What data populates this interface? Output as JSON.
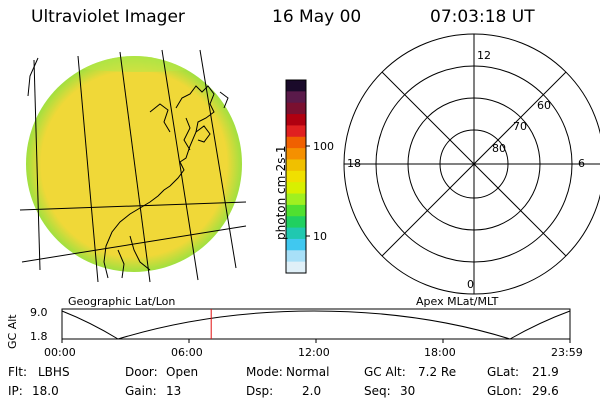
{
  "header": {
    "instrument": "Ultraviolet Imager",
    "date": "16 May 00",
    "time": "07:03:18 UT"
  },
  "colorbar": {
    "unit_label": "photon cm-2s-1",
    "ticks": [
      "100",
      "10"
    ],
    "colors": [
      "#1a0a2a",
      "#5a1a4a",
      "#7a1030",
      "#b00010",
      "#e02020",
      "#f06000",
      "#f59000",
      "#f0c000",
      "#f0e000",
      "#d8f000",
      "#a0f020",
      "#50e030",
      "#20d060",
      "#20c8b0",
      "#40c8f0",
      "#a8e0f8",
      "#e0f0f8"
    ]
  },
  "image_panel": {
    "disk_color": "#f0d838",
    "edge_color": "#a0e040"
  },
  "polar_plot": {
    "mlt_labels": {
      "top": "12",
      "left": "18",
      "right": "6",
      "bottom": "0"
    },
    "lat_labels": [
      "60",
      "70",
      "80"
    ]
  },
  "coord_labels": {
    "left": "Geographic Lat/Lon",
    "right": "Apex MLat/MLT"
  },
  "altitude_plot": {
    "ylabel": "GC Alt",
    "y_ticks": [
      "9.0",
      "1.8"
    ],
    "x_ticks": [
      "00:00",
      "06:00",
      "12:00",
      "18:00",
      "23:59"
    ],
    "current_marker_hour": 7.05
  },
  "info": {
    "flt_label": "Flt:",
    "flt_value": "LBHS",
    "door_label": "Door:",
    "door_value": "Open",
    "mode_label": "Mode:",
    "mode_value": "Normal",
    "gcalt_label": "GC Alt:",
    "gcalt_value": "7.2 Re",
    "glat_label": "GLat:",
    "glat_value": "21.9",
    "ip_label": "IP:",
    "ip_value": "18.0",
    "gain_label": "Gain:",
    "gain_value": "13",
    "dsp_label": "Dsp:",
    "dsp_value": "2.0",
    "seq_label": "Seq:",
    "seq_value": "30",
    "glon_label": "GLon:",
    "glon_value": "29.6"
  }
}
